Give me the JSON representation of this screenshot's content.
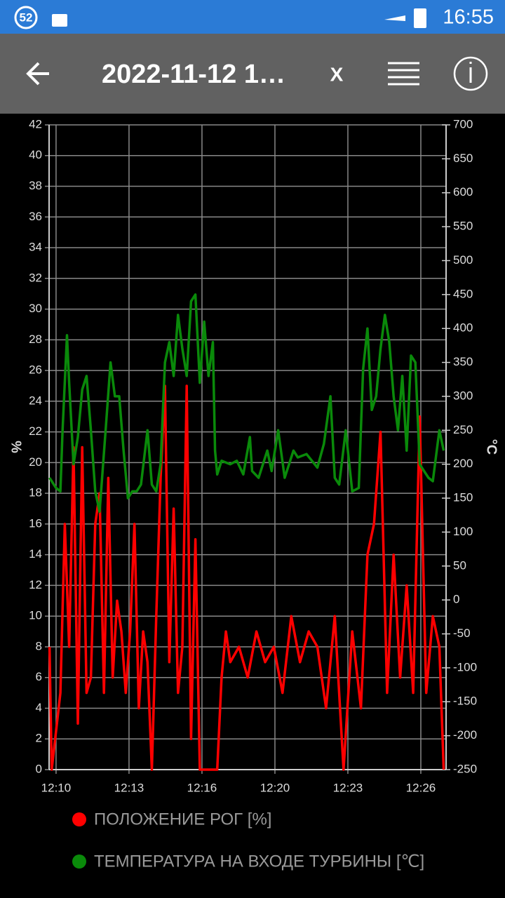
{
  "status_bar": {
    "badge": "52",
    "time": "16:55"
  },
  "app_bar": {
    "title": "2022-11-12 1…",
    "close": "X"
  },
  "chart_data": {
    "type": "line",
    "y_label": "%",
    "y2_label": "°C",
    "xlim": [
      729.68,
      747.91
    ],
    "xticks": [
      {
        "value": 730,
        "label": "12:10"
      },
      {
        "value": 733.35,
        "label": "12:13"
      },
      {
        "value": 736.7,
        "label": "12:16"
      },
      {
        "value": 740.05,
        "label": "12:20"
      },
      {
        "value": 743.4,
        "label": "12:23"
      },
      {
        "value": 746.75,
        "label": "12:26"
      }
    ],
    "ylim": [
      0,
      42
    ],
    "yticks": [
      0,
      2,
      4,
      6,
      8,
      10,
      12,
      14,
      16,
      18,
      20,
      22,
      24,
      26,
      28,
      30,
      32,
      34,
      36,
      38,
      40,
      42
    ],
    "y2lim": [
      -250,
      700
    ],
    "y2ticks": [
      -250,
      -200,
      -150,
      -100,
      -50,
      0,
      50,
      100,
      150,
      200,
      250,
      300,
      350,
      400,
      450,
      500,
      550,
      600,
      650,
      700
    ],
    "grid": true,
    "series": [
      {
        "name": "ПОЛОЖЕНИЕ РОГ [%]",
        "color": "#ff0000",
        "x": [
          729.7,
          729.8,
          730.2,
          730.4,
          730.6,
          730.8,
          731.0,
          731.2,
          731.4,
          731.6,
          731.8,
          732.0,
          732.2,
          732.4,
          732.6,
          732.8,
          733.0,
          733.2,
          733.4,
          733.6,
          733.8,
          734.0,
          734.2,
          734.4,
          734.6,
          734.8,
          735.0,
          735.2,
          735.4,
          735.6,
          735.8,
          736.0,
          736.2,
          736.4,
          736.6,
          736.8,
          737.0,
          737.4,
          737.6,
          737.8,
          738.0,
          738.4,
          738.8,
          739.2,
          739.6,
          740.0,
          740.4,
          740.8,
          741.2,
          741.6,
          742.0,
          742.4,
          742.8,
          743.2,
          743.6,
          744.0,
          744.3,
          744.6,
          744.9,
          745.2,
          745.5,
          745.8,
          746.1,
          746.4,
          746.7,
          747.0,
          747.3,
          747.6,
          747.8
        ],
        "values": [
          8,
          0,
          5,
          16,
          8,
          21,
          3,
          21,
          5,
          6,
          16,
          18,
          5,
          19,
          6,
          11,
          9,
          5,
          9,
          16,
          4,
          9,
          7,
          0,
          10,
          19,
          25,
          7,
          17,
          5,
          8,
          25,
          2,
          15,
          0,
          0,
          0,
          0,
          6,
          9,
          7,
          8,
          6,
          9,
          7,
          8,
          5,
          10,
          7,
          9,
          8,
          4,
          10,
          0,
          9,
          4,
          14,
          16,
          22,
          5,
          14,
          6,
          12,
          5,
          23,
          5,
          10,
          8,
          0
        ]
      },
      {
        "name": "ТЕМПЕРАТУРА НА ВХОДЕ ТУРБИНЫ [℃]",
        "color": "#0a8a0a",
        "axis": "y2",
        "x": [
          729.7,
          730.0,
          730.2,
          730.3,
          730.5,
          730.6,
          730.8,
          731.0,
          731.2,
          731.4,
          731.6,
          731.8,
          732.0,
          732.3,
          732.5,
          732.7,
          732.9,
          733.1,
          733.3,
          733.5,
          733.7,
          733.9,
          734.2,
          734.4,
          734.6,
          734.8,
          735.0,
          735.2,
          735.4,
          735.6,
          735.8,
          736.0,
          736.2,
          736.4,
          736.6,
          736.8,
          737.0,
          737.2,
          737.3,
          737.4,
          737.6,
          738.0,
          738.3,
          738.6,
          738.9,
          739.0,
          739.3,
          739.7,
          739.9,
          740.2,
          740.5,
          740.9,
          741.1,
          741.5,
          742.0,
          742.3,
          742.6,
          742.8,
          743.0,
          743.3,
          743.6,
          743.9,
          744.1,
          744.3,
          744.5,
          744.7,
          744.9,
          745.1,
          745.3,
          745.5,
          745.7,
          745.9,
          746.1,
          746.3,
          746.5,
          746.7,
          746.9,
          747.1,
          747.3,
          747.6,
          747.8
        ],
        "values": [
          180,
          165,
          160,
          250,
          390,
          320,
          200,
          240,
          310,
          330,
          250,
          160,
          130,
          260,
          350,
          300,
          300,
          220,
          150,
          160,
          160,
          170,
          250,
          170,
          160,
          200,
          350,
          380,
          330,
          420,
          370,
          330,
          440,
          450,
          320,
          410,
          330,
          380,
          220,
          185,
          205,
          200,
          205,
          185,
          240,
          190,
          180,
          220,
          190,
          250,
          180,
          220,
          210,
          215,
          195,
          230,
          300,
          180,
          170,
          250,
          160,
          165,
          340,
          400,
          280,
          300,
          370,
          420,
          380,
          300,
          250,
          330,
          220,
          360,
          350,
          200,
          190,
          180,
          175,
          250,
          220
        ]
      }
    ]
  }
}
